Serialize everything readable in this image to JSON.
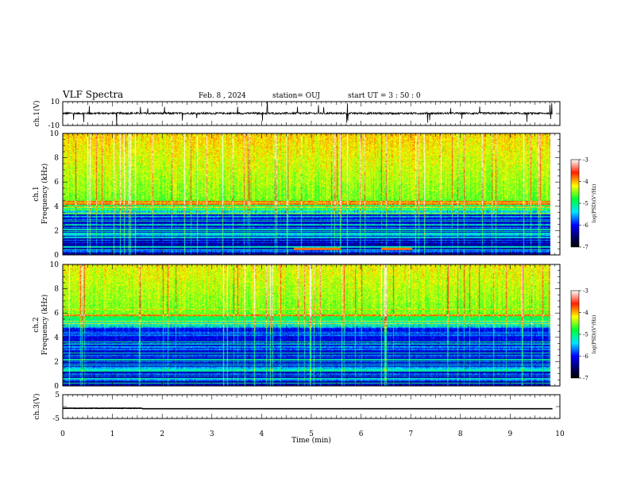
{
  "header": {
    "title": "VLF Spectra",
    "date": "Feb. 8  , 2024",
    "station": "station= OUJ",
    "start": "start  UT  =   3  : 50 : 0"
  },
  "chart_data": [
    {
      "type": "line",
      "panel": "ch1-waveform",
      "ylabel": "ch.1(V)",
      "ylim": [
        -10,
        10
      ],
      "yticks": [
        10,
        -10
      ],
      "xlim": [
        0,
        10
      ]
    },
    {
      "type": "heatmap",
      "panel": "ch1-spectrogram",
      "ylabel": "ch.1\nFrequency  (kHz)",
      "ylabel_lines": [
        "ch.1",
        "Frequency  (kHz)"
      ],
      "ylim": [
        0,
        10
      ],
      "yticks": [
        0,
        2,
        4,
        6,
        8,
        10
      ],
      "xlim": [
        0,
        9.85
      ],
      "colorbar": {
        "label": "log(PSD)(V²/Hz)",
        "range": [
          -7,
          -3
        ],
        "ticks": [
          -3,
          -4,
          -5,
          -6,
          -7
        ]
      }
    },
    {
      "type": "heatmap",
      "panel": "ch2-spectrogram",
      "ylabel": "ch.2\nFrequency  (kHz)",
      "ylabel_lines": [
        "ch.2",
        "Frequency  (kHz)"
      ],
      "ylim": [
        0,
        10
      ],
      "yticks": [
        0,
        2,
        4,
        6,
        8,
        10
      ],
      "xlim": [
        0,
        9.85
      ],
      "colorbar": {
        "label": "log(PSD)(V²/Hz)",
        "range": [
          -7,
          -3
        ],
        "ticks": [
          -3,
          -4,
          -5,
          -6,
          -7
        ]
      }
    },
    {
      "type": "line",
      "panel": "ch3-waveform",
      "ylabel": "ch.3(V)",
      "ylim": [
        -5,
        5
      ],
      "yticks": [
        5,
        -5
      ],
      "xlim": [
        0,
        10
      ],
      "xlabel": "Time  (min)",
      "xticks": [
        0,
        1,
        2,
        3,
        4,
        5,
        6,
        7,
        8,
        9,
        10
      ]
    }
  ]
}
